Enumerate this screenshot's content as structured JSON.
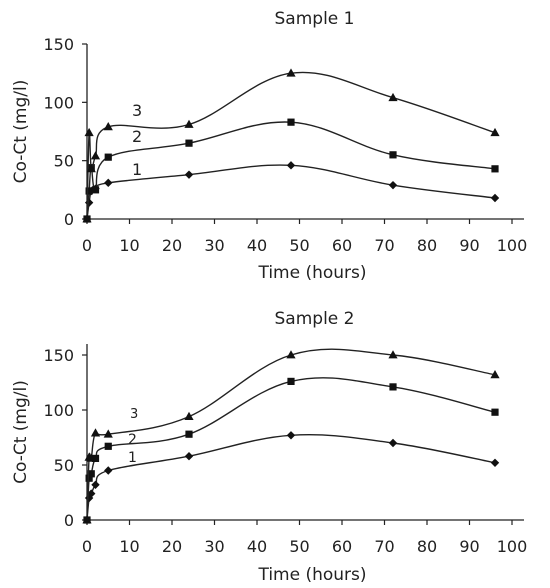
{
  "chart_data": [
    {
      "type": "line",
      "title": "Sample 1",
      "xlabel": "Time (hours)",
      "ylabel": "Co-Ct (mg/l)",
      "xlim": [
        0,
        100
      ],
      "ylim": [
        0,
        150
      ],
      "xticks": [
        0,
        10,
        20,
        30,
        40,
        50,
        60,
        70,
        80,
        90,
        100
      ],
      "yticks": [
        0,
        50,
        100,
        150
      ],
      "grid": false,
      "series": [
        {
          "name": "1",
          "marker": "diamond",
          "x": [
            0,
            0.5,
            1,
            2,
            5,
            24,
            48,
            72,
            96
          ],
          "y": [
            0,
            14,
            24,
            26,
            31,
            38,
            46,
            29,
            18
          ]
        },
        {
          "name": "2",
          "marker": "square",
          "x": [
            0,
            0.5,
            1,
            2,
            5,
            24,
            48,
            72,
            96
          ],
          "y": [
            0,
            24,
            44,
            25,
            53,
            65,
            83,
            55,
            43
          ]
        },
        {
          "name": "3",
          "marker": "triangle",
          "x": [
            0,
            0.5,
            1,
            2,
            5,
            24,
            48,
            72,
            96
          ],
          "y": [
            0,
            74,
            43,
            54,
            79,
            81,
            125,
            104,
            74
          ]
        }
      ]
    },
    {
      "type": "line",
      "title": "Sample 2",
      "xlabel": "Time (hours)",
      "ylabel": "Co-Ct (mg/l)",
      "xlim": [
        0,
        100
      ],
      "ylim": [
        0,
        160
      ],
      "xticks": [
        0,
        10,
        20,
        30,
        40,
        50,
        60,
        70,
        80,
        90,
        100
      ],
      "yticks": [
        0,
        50,
        100,
        150
      ],
      "grid": false,
      "series": [
        {
          "name": "1",
          "marker": "diamond",
          "x": [
            0,
            0.5,
            1,
            2,
            5,
            24,
            48,
            72,
            96
          ],
          "y": [
            0,
            20,
            24,
            32,
            45,
            58,
            77,
            70,
            52
          ]
        },
        {
          "name": "2",
          "marker": "square",
          "x": [
            0,
            0.5,
            1,
            2,
            5,
            24,
            48,
            72,
            96
          ],
          "y": [
            0,
            38,
            42,
            56,
            67,
            78,
            126,
            121,
            98
          ]
        },
        {
          "name": "3",
          "marker": "triangle",
          "x": [
            0,
            0.5,
            1,
            2,
            5,
            24,
            48,
            72,
            96
          ],
          "y": [
            0,
            57,
            56,
            79,
            78,
            94,
            150,
            150,
            132
          ]
        }
      ]
    }
  ]
}
